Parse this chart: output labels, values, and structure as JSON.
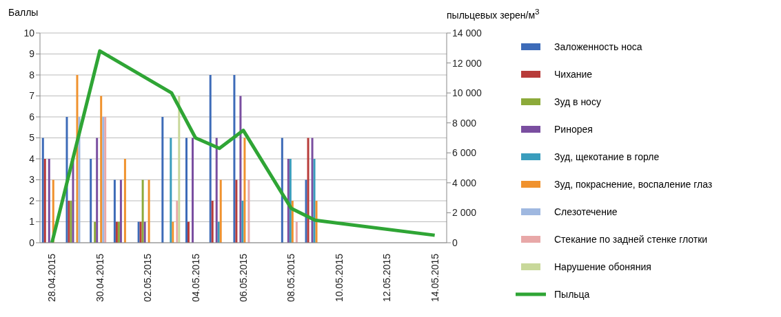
{
  "chart_data": {
    "type": "bar",
    "ylabel": "Баллы",
    "y2label": "пыльцевых зерен/м$^{3}$",
    "categories": [
      "28.04.2015",
      null,
      "30.04.2015",
      null,
      "02.05.2015",
      null,
      "04.05.2015",
      null,
      "06.05.2015",
      null,
      "08.05.2015",
      null,
      "10.05.2015",
      null,
      "12.05.2015",
      null,
      "14.05.2015"
    ],
    "series": [
      {
        "name": "Заложенность носа",
        "color": "#3d6bb8",
        "values": [
          5,
          6,
          4,
          3,
          1,
          6,
          5,
          8,
          8,
          null,
          5,
          3,
          null,
          null,
          null,
          null,
          null
        ]
      },
      {
        "name": "Чихание",
        "color": "#b83c3a",
        "values": [
          4,
          2,
          null,
          1,
          1,
          null,
          1,
          2,
          3,
          null,
          null,
          5,
          null,
          null,
          null,
          null,
          null
        ]
      },
      {
        "name": "Зуд в носу",
        "color": "#8caa3a",
        "values": [
          null,
          2,
          1,
          1,
          3,
          null,
          null,
          null,
          null,
          null,
          null,
          null,
          null,
          null,
          null,
          null,
          null
        ]
      },
      {
        "name": "Ринорея",
        "color": "#7a4ea0",
        "values": [
          4,
          4,
          5,
          3,
          1,
          null,
          5,
          5,
          7,
          null,
          4,
          5,
          null,
          null,
          null,
          null,
          null
        ]
      },
      {
        "name": "Зуд, щекотание в горле",
        "color": "#3a9dbd",
        "values": [
          null,
          null,
          null,
          null,
          null,
          5,
          null,
          1,
          2,
          null,
          4,
          4,
          null,
          null,
          null,
          null,
          null
        ]
      },
      {
        "name": "Зуд, покраснение, воспаление глаз",
        "color": "#f0922e",
        "values": [
          3,
          8,
          7,
          4,
          3,
          1,
          null,
          3,
          5,
          null,
          2,
          2,
          null,
          null,
          null,
          null,
          null
        ]
      },
      {
        "name": "Слезотечение",
        "color": "#9fb8e0",
        "values": [
          null,
          6,
          6,
          null,
          null,
          null,
          null,
          null,
          null,
          null,
          null,
          null,
          null,
          null,
          null,
          null,
          null
        ]
      },
      {
        "name": "Стекание по задней стенке глотки",
        "color": "#e8a8a8",
        "values": [
          null,
          null,
          6,
          null,
          null,
          2,
          null,
          null,
          3,
          null,
          1,
          null,
          null,
          null,
          null,
          null,
          null
        ]
      },
      {
        "name": "Нарушение обоняния",
        "color": "#c8d89a",
        "values": [
          null,
          null,
          null,
          null,
          null,
          7,
          null,
          null,
          null,
          null,
          null,
          null,
          null,
          null,
          null,
          null,
          null
        ]
      },
      {
        "name": "Пыльца",
        "type": "line",
        "axis": "y2",
        "color": "#2fa535",
        "values": [
          0,
          null,
          12800,
          null,
          null,
          10000,
          7000,
          6300,
          7500,
          null,
          2300,
          1500,
          null,
          null,
          null,
          null,
          500
        ]
      }
    ],
    "ylim": [
      0,
      10
    ],
    "yticks": [
      0,
      1,
      2,
      3,
      4,
      5,
      6,
      7,
      8,
      9,
      10
    ],
    "y2lim": [
      0,
      14000
    ],
    "y2ticks": [
      {
        "value": 0,
        "label": "0"
      },
      {
        "value": 2000,
        "label": "2 000"
      },
      {
        "value": 4000,
        "label": "4 000"
      },
      {
        "value": 6000,
        "label": "6 000"
      },
      {
        "value": 8000,
        "label": "8 000"
      },
      {
        "value": 10000,
        "label": "10 000"
      },
      {
        "value": 12000,
        "label": "12 000"
      },
      {
        "value": 14000,
        "label": "14 000"
      }
    ],
    "grid": "y",
    "legend": "right",
    "marker": "none"
  }
}
